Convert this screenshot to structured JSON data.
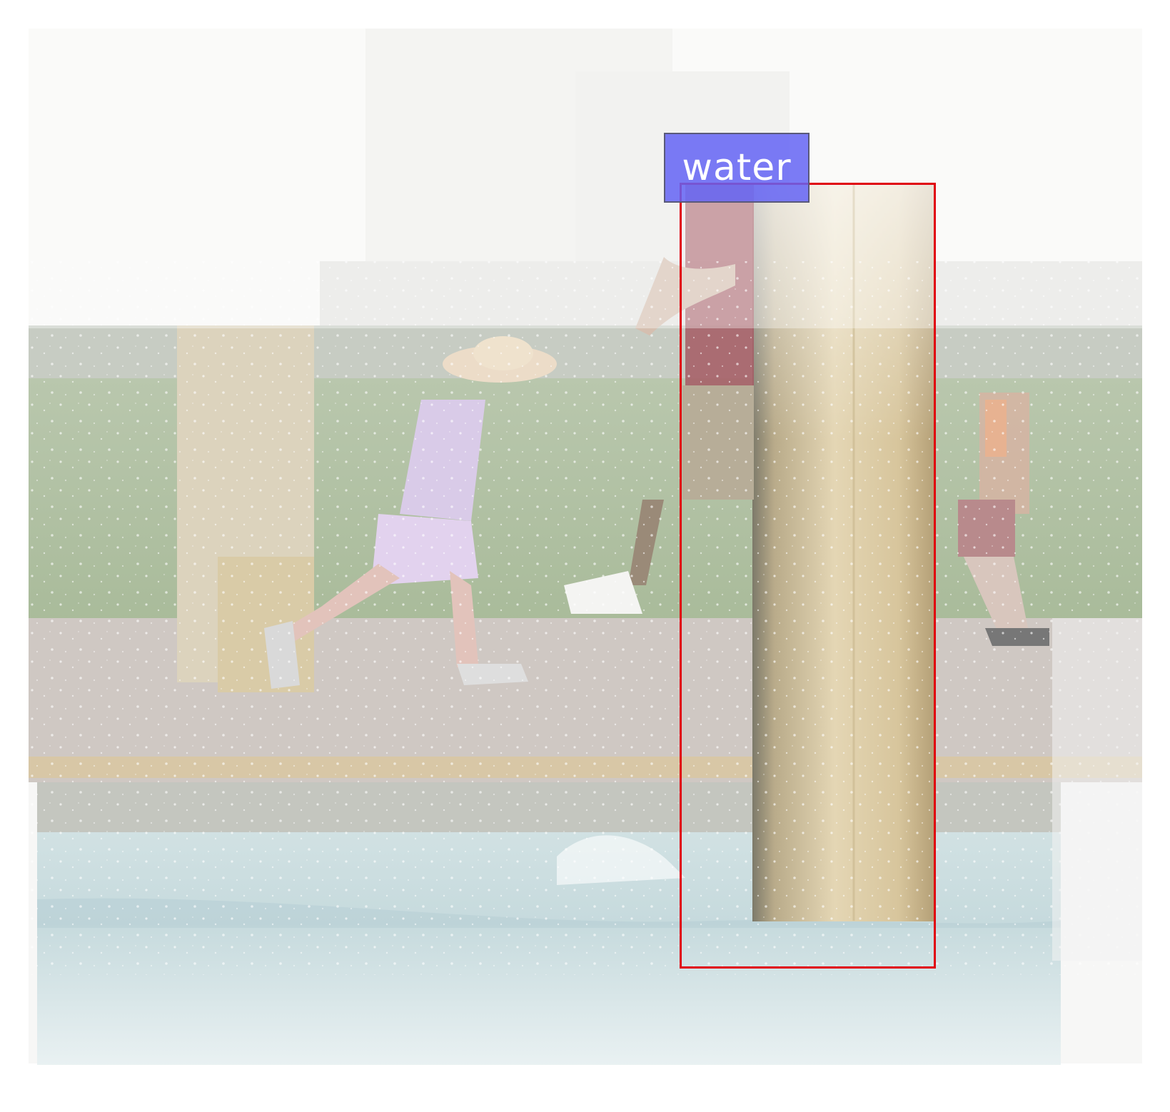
{
  "annotation": {
    "label": "water",
    "label_color": "#6464f5",
    "box_color": "#e0000e"
  }
}
